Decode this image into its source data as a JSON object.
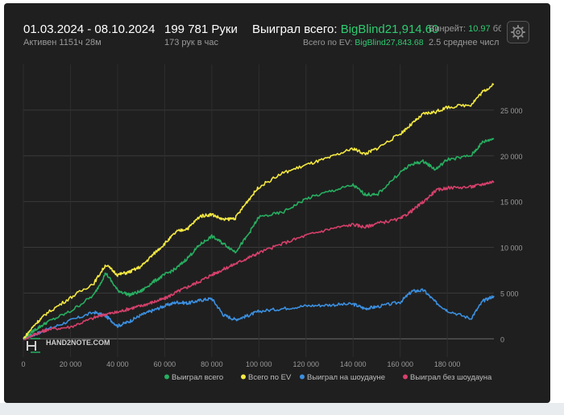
{
  "header": {
    "date_range": "01.03.2024 - 08.10.2024",
    "active_time": "Активен 1151ч 28м",
    "hands": "199 781 Руки",
    "hands_per_hour": "173 рук в час",
    "won_label": "Выиграл всего:",
    "won_value": "BigBlind21,914.60",
    "ev_label": "Всего по EV:",
    "ev_value": "BigBlind27,843.68",
    "winrate_label": "Винрейт:",
    "winrate_value": "10.97",
    "winrate_cut": "бб",
    "avg_number": "2.5 среднее числ",
    "settings_icon": "gear-icon"
  },
  "watermark": {
    "text": "HAND2NOTE.COM",
    "icon": "h2n-logo-icon"
  },
  "chart_data": {
    "type": "line",
    "x_ticks": [
      "0",
      "20 000",
      "40 000",
      "60 000",
      "80 000",
      "100 000",
      "120 000",
      "140 000",
      "160 000",
      "180 000"
    ],
    "y_ticks": [
      "0",
      "5 000",
      "10 000",
      "15 000",
      "20 000",
      "25 000"
    ],
    "xlim": [
      0,
      199781
    ],
    "ylim": [
      -2000,
      30000
    ],
    "grid": true,
    "legend_position": "bottom-right",
    "x": [
      0,
      5000,
      10000,
      20000,
      30000,
      35000,
      40000,
      45000,
      50000,
      55000,
      60000,
      65000,
      70000,
      75000,
      80000,
      85000,
      90000,
      95000,
      100000,
      110000,
      120000,
      130000,
      140000,
      145000,
      150000,
      160000,
      165000,
      170000,
      175000,
      180000,
      190000,
      195000,
      199781
    ],
    "series": [
      {
        "name": "Выиграл всего",
        "color": "#27ae60",
        "values": [
          0,
          1000,
          1800,
          3000,
          4800,
          7200,
          5300,
          4800,
          5200,
          6200,
          7000,
          7700,
          8900,
          10300,
          11200,
          10400,
          9500,
          11200,
          13300,
          13800,
          15300,
          16100,
          16800,
          15800,
          15700,
          18200,
          19100,
          19400,
          18500,
          19600,
          20000,
          21500,
          21900
        ]
      },
      {
        "name": "Всего по EV",
        "color": "#f4e842",
        "values": [
          0,
          1600,
          2800,
          4500,
          6100,
          8100,
          7000,
          7300,
          7900,
          9200,
          10400,
          11700,
          12100,
          13400,
          13600,
          13000,
          13200,
          15000,
          16600,
          18100,
          19000,
          19800,
          20800,
          20200,
          20800,
          22400,
          23500,
          24600,
          24800,
          25300,
          25600,
          27000,
          27800
        ]
      },
      {
        "name": "Выиграл на шоудауне",
        "color": "#3b8fe0",
        "values": [
          0,
          500,
          1000,
          2000,
          2900,
          2500,
          1400,
          1900,
          2600,
          3100,
          3600,
          4000,
          3900,
          4200,
          4400,
          2600,
          2100,
          2500,
          3000,
          3300,
          3600,
          3700,
          3800,
          3300,
          3500,
          4000,
          5200,
          5300,
          4000,
          3100,
          2200,
          4100,
          4700
        ]
      },
      {
        "name": "Выиграл без шоудауна",
        "color": "#d6406b",
        "values": [
          0,
          500,
          1000,
          1300,
          2300,
          2700,
          2900,
          3300,
          3600,
          4000,
          4400,
          5100,
          5700,
          6300,
          7000,
          7600,
          8200,
          8800,
          9400,
          10400,
          11300,
          12000,
          12500,
          12200,
          12600,
          13100,
          14000,
          15000,
          16200,
          16500,
          16600,
          16900,
          17200
        ]
      }
    ]
  }
}
